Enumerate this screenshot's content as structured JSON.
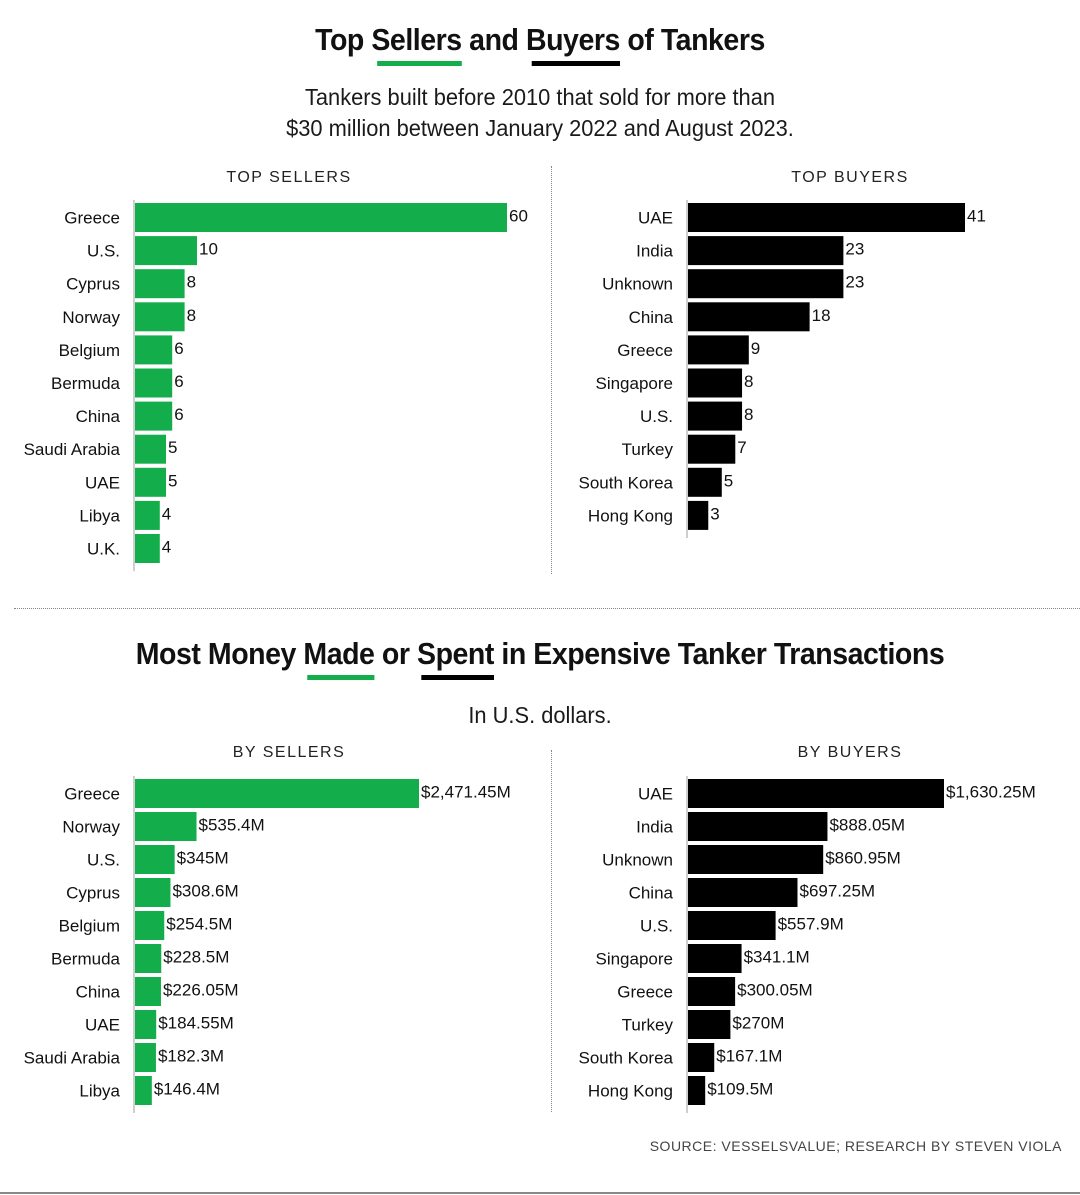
{
  "colors": {
    "seller": "#13ae4b",
    "buyer": "#000000",
    "axis": "#bdbdbd"
  },
  "section1": {
    "title_parts": [
      "Top ",
      "Sellers",
      " and ",
      "Buyers",
      " of Tankers"
    ],
    "subtitle_line1": "Tankers built before 2010 that sold for more than",
    "subtitle_line2": "$30 million between January 2022 and August 2023."
  },
  "section2": {
    "title_parts": [
      "Most Money ",
      "Made",
      " or ",
      "Spent",
      " in Expensive Tanker Transactions"
    ],
    "subtitle": "In U.S. dollars."
  },
  "source": "SOURCE: VESSELSVALUE; RESEARCH BY STEVEN VIOLA",
  "chart_data": [
    {
      "type": "bar",
      "orientation": "horizontal",
      "title": "TOP SELLERS",
      "series_color": "seller",
      "categories": [
        "Greece",
        "U.S.",
        "Cyprus",
        "Norway",
        "Belgium",
        "Bermuda",
        "China",
        "Saudi Arabia",
        "UAE",
        "Libya",
        "U.K."
      ],
      "values": [
        60,
        10,
        8,
        8,
        6,
        6,
        6,
        5,
        5,
        4,
        4
      ],
      "labels": [
        "60",
        "10",
        "8",
        "8",
        "6",
        "6",
        "6",
        "5",
        "5",
        "4",
        "4"
      ],
      "xlabel": "",
      "ylabel": "",
      "xlim": [
        0,
        60
      ],
      "grid": false,
      "legend": "none"
    },
    {
      "type": "bar",
      "orientation": "horizontal",
      "title": "TOP BUYERS",
      "series_color": "buyer",
      "categories": [
        "UAE",
        "India",
        "Unknown",
        "China",
        "Greece",
        "Singapore",
        "U.S.",
        "Turkey",
        "South Korea",
        "Hong Kong"
      ],
      "values": [
        41,
        23,
        23,
        18,
        9,
        8,
        8,
        7,
        5,
        3
      ],
      "labels": [
        "41",
        "23",
        "23",
        "18",
        "9",
        "8",
        "8",
        "7",
        "5",
        "3"
      ],
      "xlabel": "",
      "ylabel": "",
      "xlim": [
        0,
        41
      ],
      "grid": false,
      "legend": "none"
    },
    {
      "type": "bar",
      "orientation": "horizontal",
      "title": "BY SELLERS",
      "series_color": "seller",
      "unit": "millions of U.S. dollars",
      "categories": [
        "Greece",
        "Norway",
        "U.S.",
        "Cyprus",
        "Belgium",
        "Bermuda",
        "China",
        "UAE",
        "Saudi Arabia",
        "Libya"
      ],
      "values": [
        2471.45,
        535.4,
        345,
        308.6,
        254.5,
        228.5,
        226.05,
        184.55,
        182.3,
        146.4
      ],
      "labels": [
        "$2,471.45M",
        "$535.4M",
        "$345M",
        "$308.6M",
        "$254.5M",
        "$228.5M",
        "$226.05M",
        "$184.55M",
        "$182.3M",
        "$146.4M"
      ],
      "xlabel": "",
      "ylabel": "",
      "xlim": [
        0,
        2471.45
      ],
      "grid": false,
      "legend": "none"
    },
    {
      "type": "bar",
      "orientation": "horizontal",
      "title": "BY BUYERS",
      "series_color": "buyer",
      "unit": "millions of U.S. dollars",
      "categories": [
        "UAE",
        "India",
        "Unknown",
        "China",
        "U.S.",
        "Singapore",
        "Greece",
        "Turkey",
        "South Korea",
        "Hong Kong"
      ],
      "values": [
        1630.25,
        888.05,
        860.95,
        697.25,
        557.9,
        341.1,
        300.05,
        270,
        167.1,
        109.5
      ],
      "labels": [
        "$1,630.25M",
        "$888.05M",
        "$860.95M",
        "$697.25M",
        "$557.9M",
        "$341.1M",
        "$300.05M",
        "$270M",
        "$167.1M",
        "$109.5M"
      ],
      "xlabel": "",
      "ylabel": "",
      "xlim": [
        0,
        1630.25
      ],
      "grid": false,
      "legend": "none"
    }
  ]
}
